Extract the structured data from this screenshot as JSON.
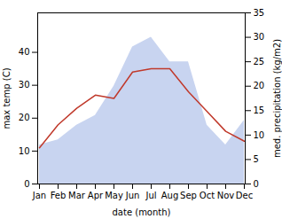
{
  "chart_data": {
    "type": "line",
    "x_label": "date (month)",
    "y_label": "max temp (C)",
    "y2_label": "med. precipitation (kg/m2)",
    "categories": [
      "Jan",
      "Feb",
      "Mar",
      "Apr",
      "May",
      "Jun",
      "Jul",
      "Aug",
      "Sep",
      "Oct",
      "Nov",
      "Dec"
    ],
    "series": [
      {
        "type": "area",
        "axis": "y2",
        "color": "#c8d4f0",
        "values": [
          8,
          9,
          12,
          14,
          20,
          28,
          30,
          25,
          25,
          12,
          8,
          13
        ]
      },
      {
        "type": "line",
        "color": "#c0392b",
        "values": [
          11,
          18,
          23,
          27,
          26,
          34,
          35,
          35,
          28,
          22,
          16,
          13
        ]
      }
    ],
    "ylim": [
      0,
      52
    ],
    "yticks": [
      0,
      10,
      20,
      30,
      40
    ],
    "y2lim": [
      0,
      35
    ],
    "y2ticks": [
      0,
      5,
      10,
      15,
      20,
      25,
      30,
      35
    ],
    "grid": false
  }
}
